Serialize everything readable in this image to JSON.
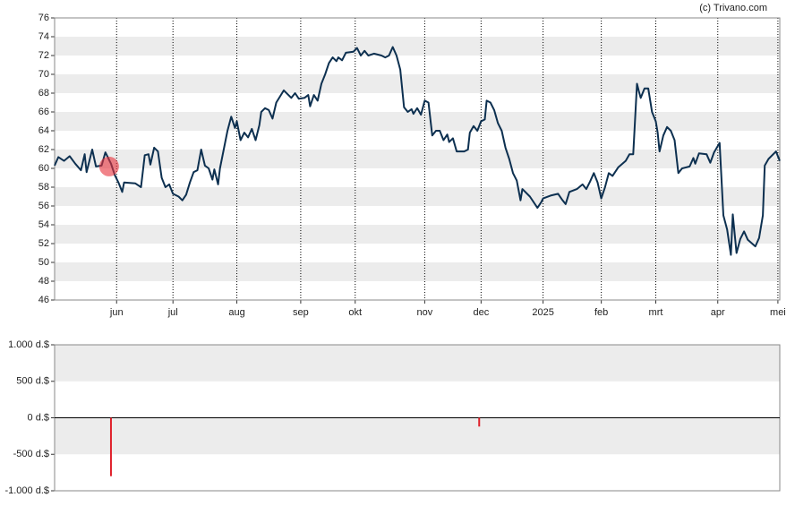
{
  "credit": "(c) Trivano.com",
  "chart_data": [
    {
      "type": "line",
      "color": "#0d3050",
      "banded": true,
      "xgrid": "dotted",
      "xlim": [
        0,
        386
      ],
      "ylim": [
        46,
        76
      ],
      "yticks": [
        46,
        48,
        50,
        52,
        54,
        56,
        58,
        60,
        62,
        64,
        66,
        68,
        70,
        72,
        74,
        76
      ],
      "xticks": [
        {
          "value": 33,
          "label": "jun"
        },
        {
          "value": 63,
          "label": "jul"
        },
        {
          "value": 97,
          "label": "aug"
        },
        {
          "value": 131,
          "label": "sep"
        },
        {
          "value": 160,
          "label": "okt"
        },
        {
          "value": 197,
          "label": "nov"
        },
        {
          "value": 227,
          "label": "dec"
        },
        {
          "value": 260,
          "label": "2025"
        },
        {
          "value": 291,
          "label": "feb"
        },
        {
          "value": 320,
          "label": "mrt"
        },
        {
          "value": 353,
          "label": "apr"
        },
        {
          "value": 385,
          "label": "mei"
        }
      ],
      "x": [
        0,
        2,
        5,
        8,
        11,
        14,
        16,
        17,
        20,
        22,
        25,
        27,
        30,
        32,
        34,
        36,
        37,
        43,
        46,
        48,
        50,
        51,
        53,
        55,
        57,
        59,
        61,
        63,
        66,
        68,
        70,
        72,
        74,
        76,
        78,
        80,
        82,
        84,
        85,
        87,
        88,
        90,
        92,
        94,
        96,
        97,
        99,
        101,
        103,
        105,
        107,
        109,
        110,
        112,
        114,
        116,
        118,
        122,
        126,
        128,
        130,
        133,
        135,
        136,
        138,
        140,
        142,
        144,
        146,
        148,
        150,
        151,
        153,
        155,
        159,
        161,
        163,
        165,
        167,
        170,
        174,
        176,
        178,
        180,
        182,
        184,
        186,
        188,
        190,
        191,
        193,
        195,
        197,
        199,
        201,
        203,
        205,
        207,
        209,
        210,
        212,
        214,
        218,
        220,
        221,
        223,
        225,
        227,
        229,
        230,
        232,
        234,
        236,
        238,
        240,
        242,
        244,
        246,
        248,
        249,
        253,
        257,
        259,
        260,
        264,
        268,
        270,
        272,
        274,
        278,
        281,
        283,
        285,
        287,
        289,
        291,
        293,
        295,
        297,
        300,
        304,
        306,
        308,
        310,
        311,
        312,
        314,
        316,
        318,
        320,
        321,
        322,
        324,
        326,
        328,
        330,
        332,
        334,
        338,
        340,
        341,
        343,
        347,
        349,
        351,
        354,
        356,
        358,
        360,
        361,
        363,
        365,
        367,
        369,
        373,
        375,
        377,
        378,
        380,
        384,
        386
      ],
      "values": [
        60.3,
        61.2,
        60.8,
        61.3,
        60.5,
        59.8,
        61.5,
        59.6,
        62.0,
        60.2,
        60.3,
        61.7,
        60.5,
        59.3,
        58.5,
        57.5,
        58.5,
        58.4,
        58.0,
        61.4,
        61.5,
        60.4,
        62.2,
        61.8,
        59.0,
        58.0,
        58.3,
        57.3,
        57.0,
        56.6,
        57.2,
        58.5,
        59.6,
        59.8,
        62.0,
        60.3,
        60.0,
        58.8,
        59.9,
        58.3,
        60.0,
        62.0,
        64.0,
        65.5,
        64.3,
        65.0,
        63.0,
        63.8,
        63.3,
        64.2,
        63.0,
        64.6,
        66.0,
        66.4,
        66.2,
        65.3,
        67.0,
        68.3,
        67.5,
        68.0,
        67.4,
        67.5,
        67.8,
        66.6,
        67.8,
        67.2,
        69.0,
        70.0,
        71.2,
        71.8,
        71.4,
        71.8,
        71.5,
        72.3,
        72.4,
        72.8,
        72.0,
        72.5,
        72.0,
        72.2,
        72.0,
        71.8,
        72.0,
        72.9,
        72.0,
        70.5,
        66.5,
        66.0,
        66.3,
        65.8,
        66.4,
        65.7,
        67.2,
        67.0,
        63.5,
        64.0,
        64.0,
        63.0,
        63.6,
        62.8,
        63.2,
        61.8,
        61.8,
        62.0,
        63.8,
        64.5,
        64.0,
        65.0,
        65.2,
        67.2,
        67.0,
        66.2,
        64.8,
        64.0,
        62.2,
        61.0,
        59.5,
        58.7,
        56.6,
        57.8,
        57.0,
        55.8,
        56.4,
        56.8,
        57.1,
        57.3,
        56.7,
        56.2,
        57.5,
        57.8,
        58.3,
        57.8,
        58.6,
        59.5,
        58.5,
        56.8,
        58.0,
        59.5,
        59.2,
        60.1,
        60.8,
        61.5,
        61.5,
        69.0,
        68.2,
        67.5,
        68.5,
        68.5,
        66.0,
        65.0,
        63.8,
        61.8,
        63.5,
        64.4,
        64.0,
        63.0,
        59.5,
        60.0,
        60.2,
        61.1,
        60.5,
        61.6,
        61.5,
        60.6,
        61.7,
        62.7,
        55.0,
        53.5,
        50.8,
        55.1,
        51.0,
        52.5,
        53.3,
        52.4,
        51.7,
        52.6,
        55.0,
        60.3,
        61.0,
        61.8,
        60.8
      ],
      "markers": {
        "color": "#e8303a",
        "x": [
          29
        ],
        "values": [
          60.2
        ]
      }
    },
    {
      "type": "bar",
      "color": "#e0202a",
      "banded": true,
      "xlim": [
        0,
        386
      ],
      "ylim": [
        -1000,
        1000
      ],
      "yticks": [
        {
          "value": -1000,
          "label": "-1.000 d.$"
        },
        {
          "value": -500,
          "label": "-500 d.$"
        },
        {
          "value": 0,
          "label": "0 d.$"
        },
        {
          "value": 500,
          "label": "500 d.$"
        },
        {
          "value": 1000,
          "label": "1.000 d.$"
        }
      ],
      "x": [
        30,
        226
      ],
      "values": [
        -800,
        -120
      ]
    }
  ]
}
